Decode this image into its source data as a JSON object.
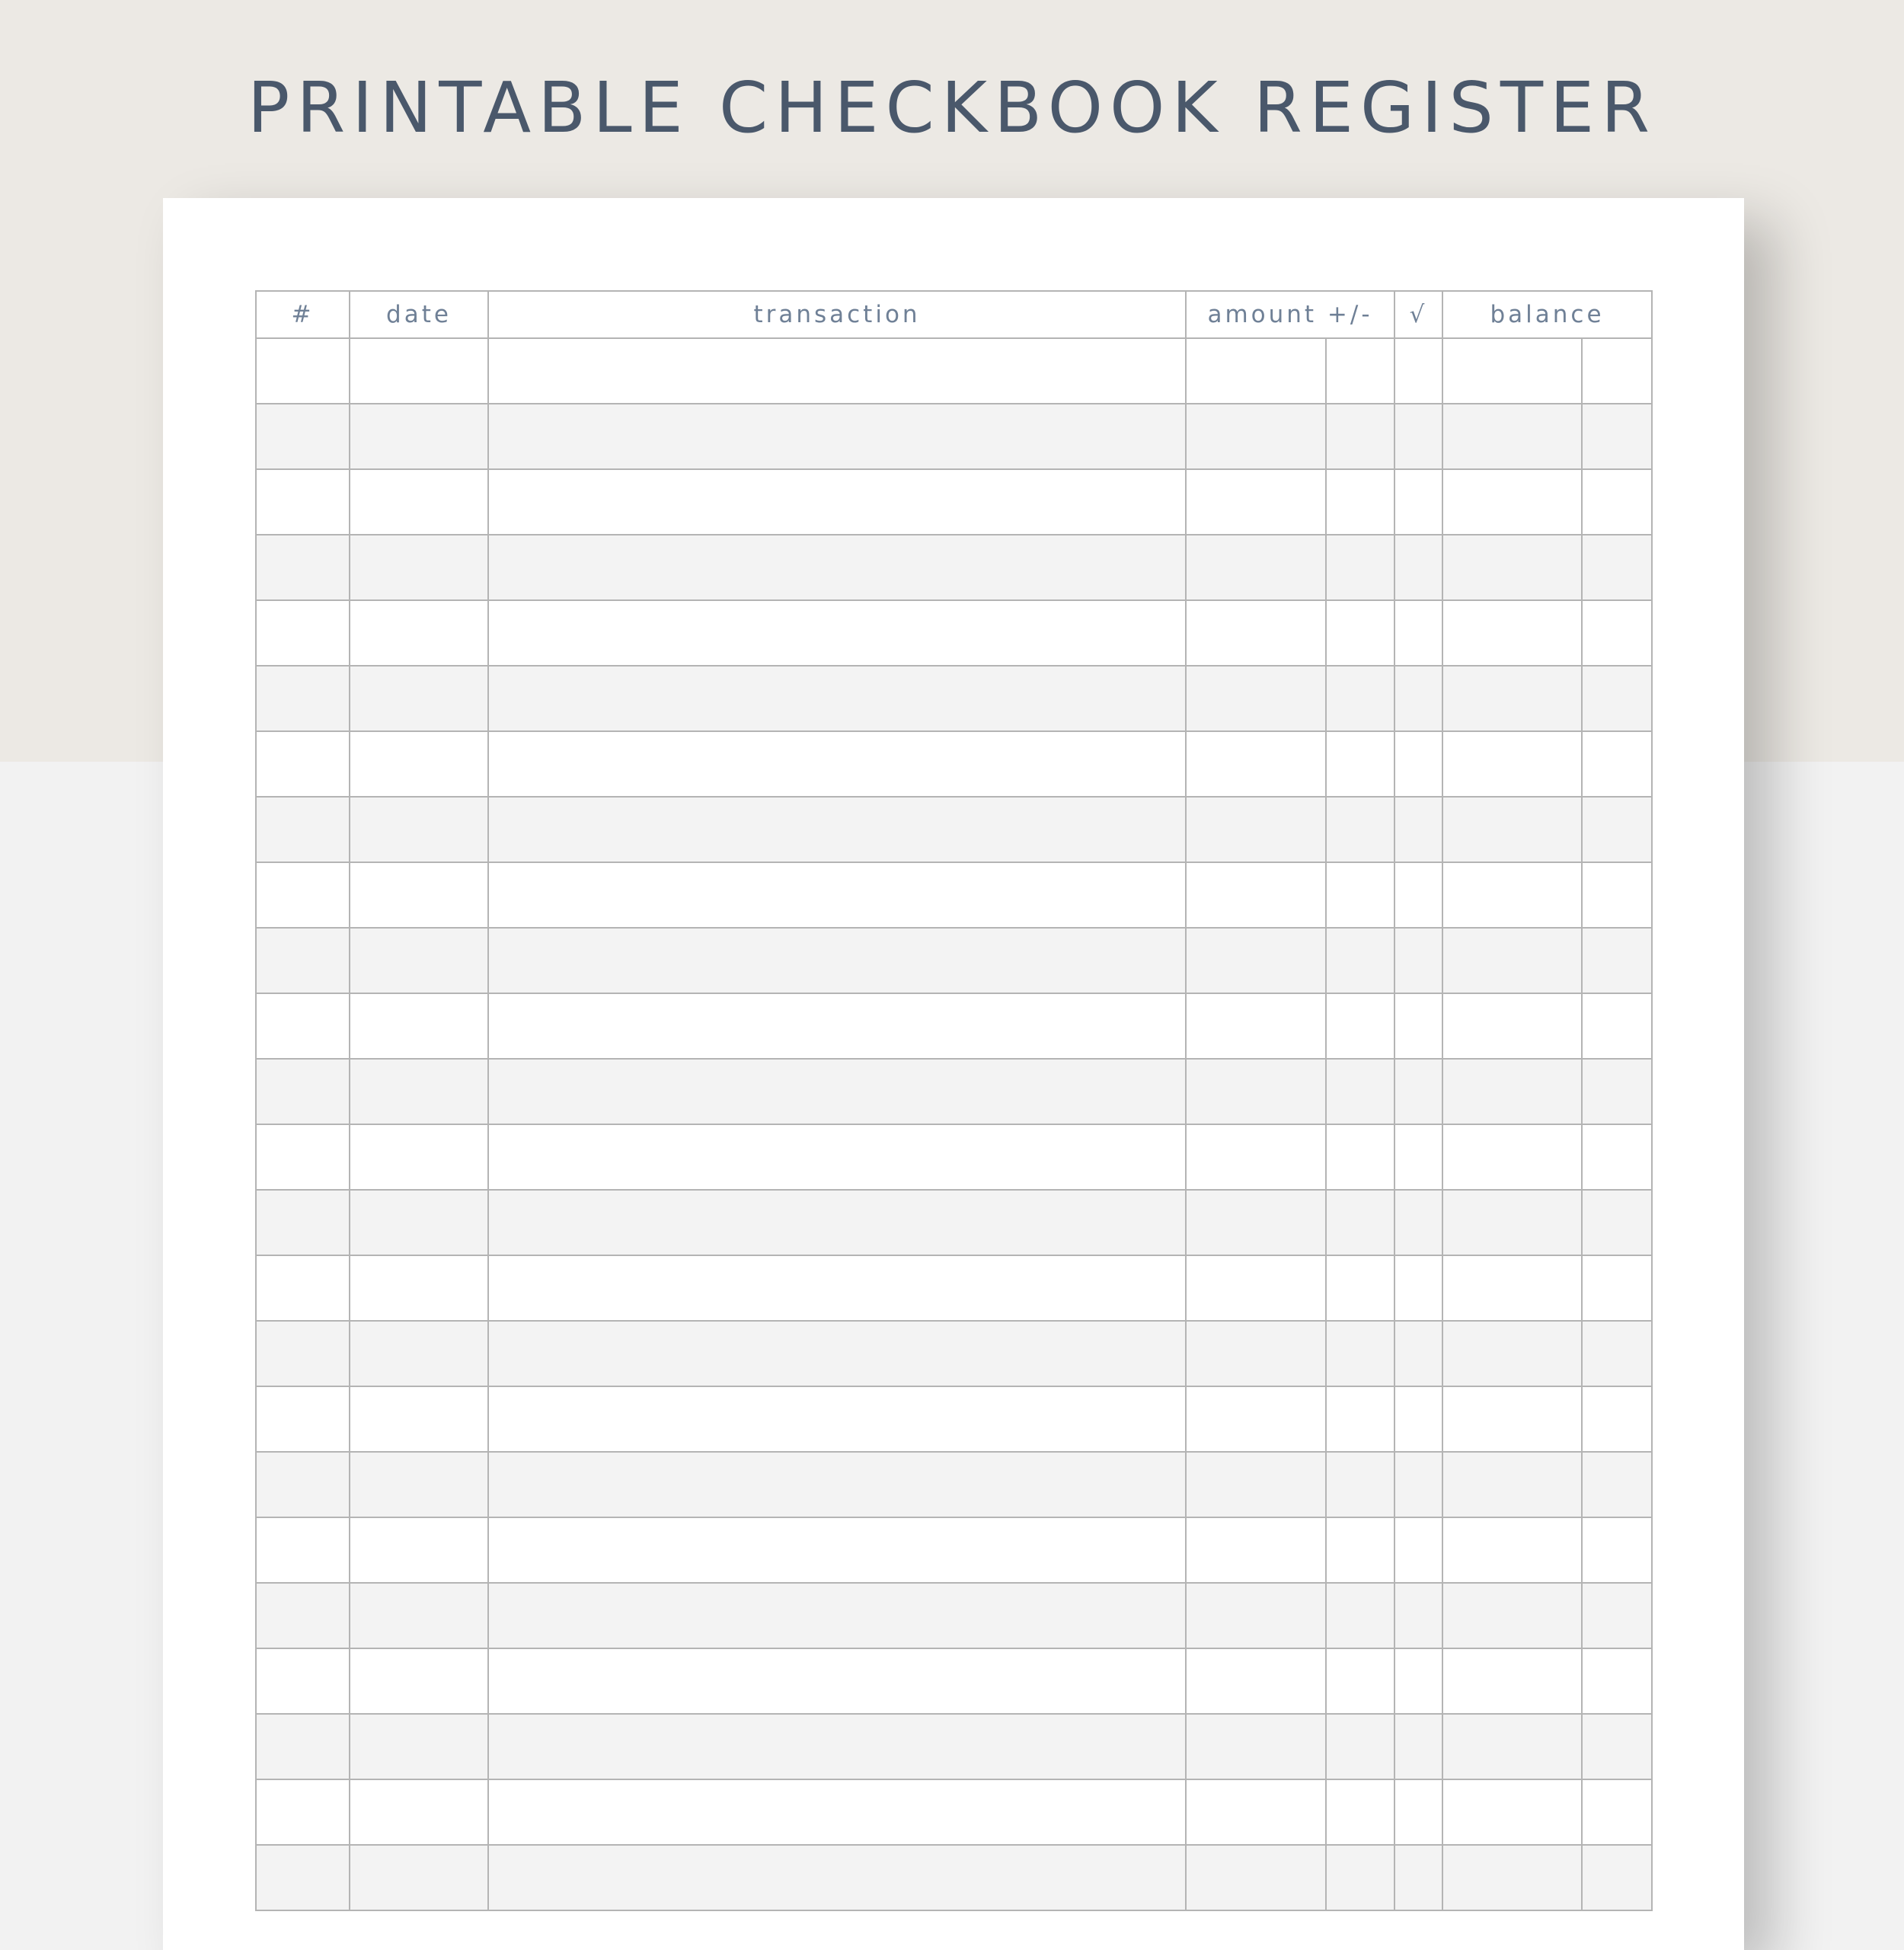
{
  "title": "PRINTABLE CHECKBOOK REGISTER",
  "columns": {
    "number": "#",
    "date": "date",
    "transaction": "transaction",
    "amount": "amount +/-",
    "check": "√",
    "balance": "balance"
  },
  "row_count": 24,
  "colors": {
    "title": "#4a586b",
    "header_text": "#6f8096",
    "band": "#ece9e4",
    "row_alt": "#f3f3f3",
    "grid": "#b4b4b4"
  }
}
